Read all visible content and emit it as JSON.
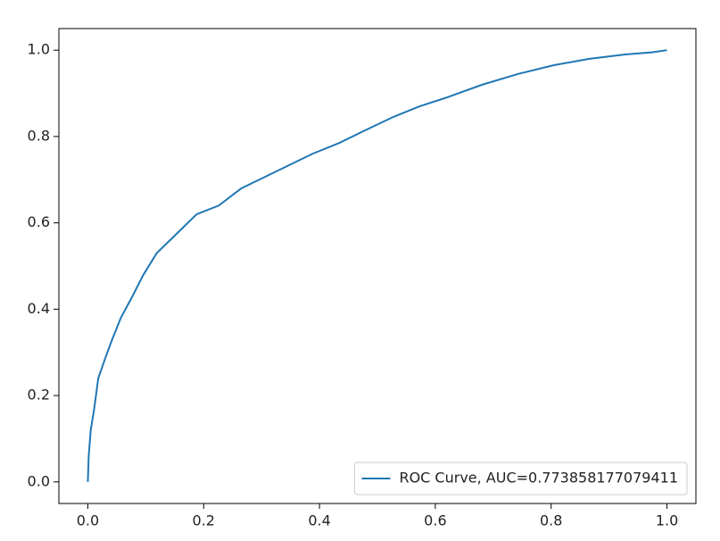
{
  "chart_data": {
    "type": "line",
    "series": [
      {
        "name": "ROC Curve, AUC=0.773858177079411",
        "color": "#1f77b4",
        "x": [
          0,
          0.0015,
          0.005,
          0.011,
          0.018,
          0.031,
          0.042,
          0.057,
          0.077,
          0.096,
          0.119,
          0.142,
          0.165,
          0.188,
          0.226,
          0.265,
          0.296,
          0.342,
          0.388,
          0.434,
          0.48,
          0.527,
          0.573,
          0.619,
          0.681,
          0.743,
          0.804,
          0.866,
          0.928,
          0.974,
          1
        ],
        "values": [
          0,
          0.06,
          0.12,
          0.17,
          0.24,
          0.29,
          0.33,
          0.38,
          0.43,
          0.48,
          0.53,
          0.56,
          0.59,
          0.62,
          0.64,
          0.68,
          0.7,
          0.73,
          0.76,
          0.785,
          0.815,
          0.845,
          0.87,
          0.89,
          0.92,
          0.945,
          0.965,
          0.98,
          0.99,
          0.995,
          1
        ]
      }
    ],
    "xlim": [
      -0.05,
      1.05
    ],
    "ylim": [
      -0.05,
      1.05
    ],
    "xticks": [
      {
        "value": 0,
        "label": "0.0"
      },
      0.2,
      0.4,
      0.6,
      0.8,
      {
        "value": 1,
        "label": "1.0"
      }
    ],
    "yticks": [
      {
        "value": 0,
        "label": "0.0"
      },
      0.2,
      0.4,
      0.6,
      0.8,
      {
        "value": 1,
        "label": "1.0"
      }
    ],
    "grid": false,
    "legend": "lower right"
  }
}
